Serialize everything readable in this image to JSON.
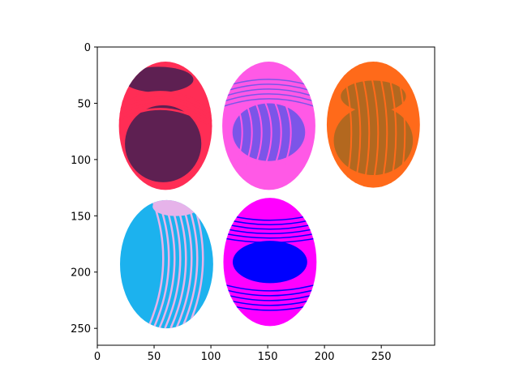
{
  "image_axes": {
    "xlim": [
      0,
      297
    ],
    "ylim": [
      265,
      0
    ],
    "x_ticks": [
      "0",
      "50",
      "100",
      "150",
      "200",
      "250"
    ],
    "y_ticks": [
      "0",
      "50",
      "100",
      "150",
      "200",
      "250"
    ]
  },
  "eggs": [
    {
      "name": "egg-red",
      "cx": 60,
      "cy": 70,
      "rx": 41,
      "ry": 57,
      "base": "#ff2d55",
      "pattern": "#5e2052"
    },
    {
      "name": "egg-pink",
      "cx": 151,
      "cy": 70,
      "rx": 41,
      "ry": 57,
      "base": "#ff59e6",
      "pattern": "#7c55e8"
    },
    {
      "name": "egg-orange",
      "cx": 243,
      "cy": 69,
      "rx": 41,
      "ry": 56,
      "base": "#ff6a1a",
      "pattern": "#b3681f"
    },
    {
      "name": "egg-blue",
      "cx": 61,
      "cy": 193,
      "rx": 41,
      "ry": 57,
      "base": "#1cb2ee",
      "pattern": "#e6b3ea"
    },
    {
      "name": "egg-magenta",
      "cx": 152,
      "cy": 191,
      "rx": 41,
      "ry": 57,
      "base": "#ff00ff",
      "pattern": "#0000ff"
    }
  ]
}
